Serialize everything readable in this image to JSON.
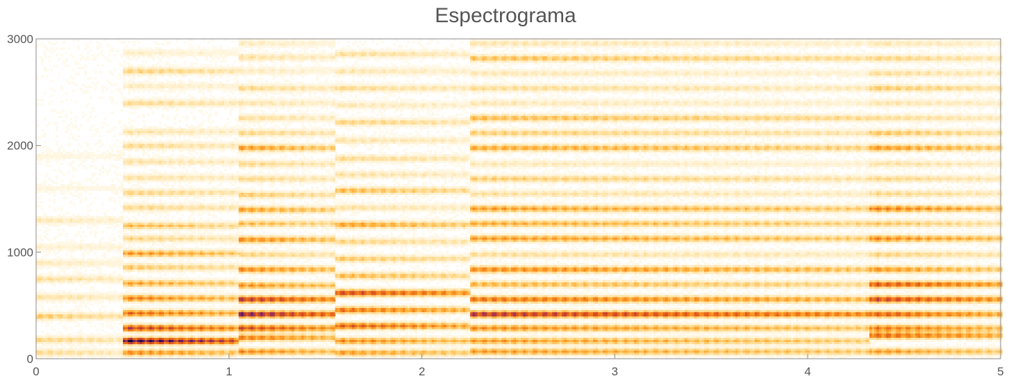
{
  "chart_data": {
    "type": "heatmap",
    "title": "Espectrograma",
    "xlabel": "",
    "ylabel": "",
    "xlim": [
      0,
      5
    ],
    "ylim": [
      0,
      3000
    ],
    "x_ticks": [
      0,
      1,
      2,
      3,
      4,
      5
    ],
    "y_ticks": [
      0,
      1000,
      2000,
      3000
    ],
    "grid": false,
    "colormap": [
      "#ffffff",
      "#fff3d6",
      "#ffd98a",
      "#ffad33",
      "#f07818",
      "#d54a22",
      "#8a2a6b",
      "#3a1060",
      "#0a0320"
    ],
    "segments": [
      {
        "t_start": 0.0,
        "t_end": 0.45,
        "bands": [
          {
            "f": 60,
            "intensity": 0.25
          },
          {
            "f": 180,
            "intensity": 0.28
          },
          {
            "f": 400,
            "intensity": 0.32
          },
          {
            "f": 580,
            "intensity": 0.22
          },
          {
            "f": 750,
            "intensity": 0.25
          },
          {
            "f": 900,
            "intensity": 0.18
          },
          {
            "f": 1050,
            "intensity": 0.15
          },
          {
            "f": 1300,
            "intensity": 0.2
          },
          {
            "f": 1600,
            "intensity": 0.1
          },
          {
            "f": 1900,
            "intensity": 0.1
          }
        ]
      },
      {
        "t_start": 0.45,
        "t_end": 1.05,
        "bands": [
          {
            "f": 60,
            "intensity": 0.5
          },
          {
            "f": 170,
            "intensity": 1.0
          },
          {
            "f": 290,
            "intensity": 0.75
          },
          {
            "f": 430,
            "intensity": 0.6
          },
          {
            "f": 570,
            "intensity": 0.55
          },
          {
            "f": 710,
            "intensity": 0.45
          },
          {
            "f": 860,
            "intensity": 0.35
          },
          {
            "f": 990,
            "intensity": 0.5
          },
          {
            "f": 1130,
            "intensity": 0.3
          },
          {
            "f": 1250,
            "intensity": 0.4
          },
          {
            "f": 1420,
            "intensity": 0.3
          },
          {
            "f": 1560,
            "intensity": 0.32
          },
          {
            "f": 1700,
            "intensity": 0.25
          },
          {
            "f": 1850,
            "intensity": 0.25
          },
          {
            "f": 2000,
            "intensity": 0.3
          },
          {
            "f": 2130,
            "intensity": 0.25
          },
          {
            "f": 2400,
            "intensity": 0.32
          },
          {
            "f": 2560,
            "intensity": 0.2
          },
          {
            "f": 2700,
            "intensity": 0.38
          },
          {
            "f": 2870,
            "intensity": 0.18
          }
        ]
      },
      {
        "t_start": 1.05,
        "t_end": 1.55,
        "bands": [
          {
            "f": 70,
            "intensity": 0.5
          },
          {
            "f": 200,
            "intensity": 0.55
          },
          {
            "f": 290,
            "intensity": 0.7
          },
          {
            "f": 420,
            "intensity": 0.9
          },
          {
            "f": 560,
            "intensity": 0.8
          },
          {
            "f": 690,
            "intensity": 0.5
          },
          {
            "f": 840,
            "intensity": 0.55
          },
          {
            "f": 980,
            "intensity": 0.3
          },
          {
            "f": 1120,
            "intensity": 0.55
          },
          {
            "f": 1270,
            "intensity": 0.4
          },
          {
            "f": 1400,
            "intensity": 0.5
          },
          {
            "f": 1540,
            "intensity": 0.35
          },
          {
            "f": 1690,
            "intensity": 0.3
          },
          {
            "f": 1830,
            "intensity": 0.3
          },
          {
            "f": 1980,
            "intensity": 0.55
          },
          {
            "f": 2120,
            "intensity": 0.32
          },
          {
            "f": 2260,
            "intensity": 0.28
          },
          {
            "f": 2400,
            "intensity": 0.25
          },
          {
            "f": 2540,
            "intensity": 0.32
          },
          {
            "f": 2700,
            "intensity": 0.2
          },
          {
            "f": 2830,
            "intensity": 0.28
          },
          {
            "f": 2960,
            "intensity": 0.2
          }
        ]
      },
      {
        "t_start": 1.55,
        "t_end": 2.25,
        "bands": [
          {
            "f": 60,
            "intensity": 0.45
          },
          {
            "f": 170,
            "intensity": 0.5
          },
          {
            "f": 310,
            "intensity": 0.65
          },
          {
            "f": 460,
            "intensity": 0.6
          },
          {
            "f": 620,
            "intensity": 0.75
          },
          {
            "f": 780,
            "intensity": 0.4
          },
          {
            "f": 940,
            "intensity": 0.35
          },
          {
            "f": 1100,
            "intensity": 0.3
          },
          {
            "f": 1260,
            "intensity": 0.5
          },
          {
            "f": 1420,
            "intensity": 0.25
          },
          {
            "f": 1580,
            "intensity": 0.42
          },
          {
            "f": 1730,
            "intensity": 0.25
          },
          {
            "f": 1880,
            "intensity": 0.3
          },
          {
            "f": 2050,
            "intensity": 0.25
          },
          {
            "f": 2220,
            "intensity": 0.35
          },
          {
            "f": 2380,
            "intensity": 0.22
          },
          {
            "f": 2540,
            "intensity": 0.32
          },
          {
            "f": 2700,
            "intensity": 0.25
          },
          {
            "f": 2860,
            "intensity": 0.3
          }
        ]
      },
      {
        "t_start": 2.25,
        "t_end": 4.32,
        "bands": [
          {
            "f": 70,
            "intensity": 0.45
          },
          {
            "f": 170,
            "intensity": 0.45
          },
          {
            "f": 290,
            "intensity": 0.5
          },
          {
            "f": 420,
            "intensity": 0.8
          },
          {
            "f": 560,
            "intensity": 0.6
          },
          {
            "f": 700,
            "intensity": 0.4
          },
          {
            "f": 840,
            "intensity": 0.55
          },
          {
            "f": 980,
            "intensity": 0.25
          },
          {
            "f": 1130,
            "intensity": 0.5
          },
          {
            "f": 1270,
            "intensity": 0.45
          },
          {
            "f": 1410,
            "intensity": 0.5
          },
          {
            "f": 1550,
            "intensity": 0.25
          },
          {
            "f": 1690,
            "intensity": 0.35
          },
          {
            "f": 1830,
            "intensity": 0.2
          },
          {
            "f": 1980,
            "intensity": 0.5
          },
          {
            "f": 2120,
            "intensity": 0.35
          },
          {
            "f": 2260,
            "intensity": 0.45
          },
          {
            "f": 2400,
            "intensity": 0.22
          },
          {
            "f": 2540,
            "intensity": 0.3
          },
          {
            "f": 2680,
            "intensity": 0.22
          },
          {
            "f": 2820,
            "intensity": 0.45
          },
          {
            "f": 2960,
            "intensity": 0.25
          }
        ]
      },
      {
        "t_start": 4.32,
        "t_end": 5.0,
        "bands": [
          {
            "f": 70,
            "intensity": 0.45
          },
          {
            "f": 220,
            "intensity": 0.6
          },
          {
            "f": 290,
            "intensity": 0.55
          },
          {
            "f": 420,
            "intensity": 0.65
          },
          {
            "f": 560,
            "intensity": 0.75
          },
          {
            "f": 700,
            "intensity": 0.7
          },
          {
            "f": 840,
            "intensity": 0.5
          },
          {
            "f": 980,
            "intensity": 0.3
          },
          {
            "f": 1130,
            "intensity": 0.55
          },
          {
            "f": 1270,
            "intensity": 0.35
          },
          {
            "f": 1410,
            "intensity": 0.6
          },
          {
            "f": 1550,
            "intensity": 0.3
          },
          {
            "f": 1690,
            "intensity": 0.3
          },
          {
            "f": 1830,
            "intensity": 0.25
          },
          {
            "f": 1980,
            "intensity": 0.55
          },
          {
            "f": 2120,
            "intensity": 0.4
          },
          {
            "f": 2260,
            "intensity": 0.3
          },
          {
            "f": 2400,
            "intensity": 0.25
          },
          {
            "f": 2540,
            "intensity": 0.4
          },
          {
            "f": 2680,
            "intensity": 0.3
          },
          {
            "f": 2820,
            "intensity": 0.35
          },
          {
            "f": 2960,
            "intensity": 0.25
          }
        ]
      }
    ]
  }
}
